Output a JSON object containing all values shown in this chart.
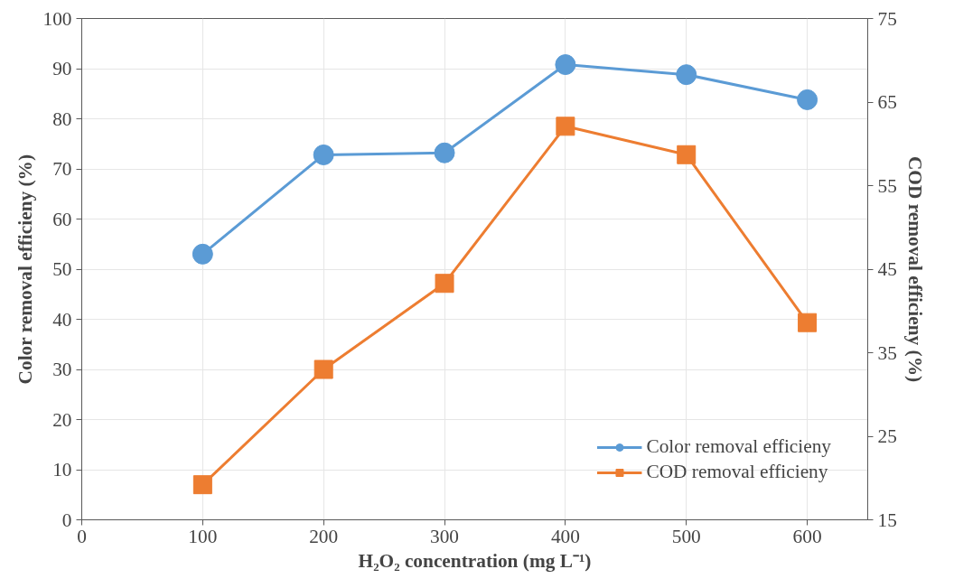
{
  "chart_data": {
    "type": "line",
    "xlabel": "H₂O₂ concentration (mg L⁻¹)",
    "ylabel": "Color removal efficieny (%)",
    "y2label": "COD removal efficieny (%)",
    "x": [
      100,
      200,
      300,
      400,
      500,
      600
    ],
    "series": [
      {
        "name": "Color removal efficieny",
        "color": "#5b9bd5",
        "marker": "circle",
        "values": [
          53,
          72.8,
          73.2,
          90.8,
          88.8,
          83.8
        ]
      },
      {
        "name": "COD removal efficieny",
        "color": "#ed7d31",
        "marker": "square",
        "axis": "y2",
        "values": [
          19.2,
          33.0,
          43.3,
          62.1,
          58.7,
          38.6
        ]
      }
    ],
    "xlim": [
      0,
      650
    ],
    "xticks": [
      0,
      100,
      200,
      300,
      400,
      500,
      600
    ],
    "ylim": [
      0,
      100
    ],
    "yticks": [
      0,
      10,
      20,
      30,
      40,
      50,
      60,
      70,
      80,
      90,
      100
    ],
    "y2lim": [
      15,
      75
    ],
    "y2ticks": [
      15,
      25,
      35,
      45,
      55,
      65,
      75
    ],
    "grid": true,
    "legend": "bottom right",
    "line_style": "solid"
  }
}
